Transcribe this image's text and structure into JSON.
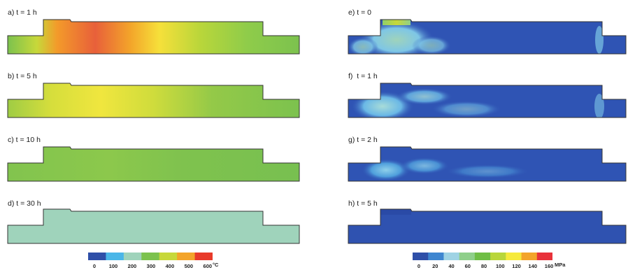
{
  "temperature_panels": [
    {
      "label": "a) t = 1 h"
    },
    {
      "label": "b) t = 5 h"
    },
    {
      "label": "c) t = 10 h"
    },
    {
      "label": "d) t = 30 h"
    }
  ],
  "stress_panels": [
    {
      "label": "e) t = 0"
    },
    {
      "label": "f)  t = 1 h"
    },
    {
      "label": "g) t = 2 h"
    },
    {
      "label": "h) t = 5 h"
    }
  ],
  "temperature_legend": {
    "ticks": [
      "0",
      "100",
      "200",
      "300",
      "400",
      "500",
      "600"
    ],
    "unit": "°C",
    "colors": [
      "#2f4fa8",
      "#4ab6e8",
      "#9fd3bb",
      "#7cc24e",
      "#c7d83a",
      "#f3a42a",
      "#e83a2a"
    ]
  },
  "stress_legend": {
    "ticks": [
      "0",
      "20",
      "40",
      "60",
      "80",
      "100",
      "120",
      "140",
      "160"
    ],
    "unit": "MPa",
    "colors": [
      "#2f4fa8",
      "#3f86d0",
      "#9fd3e4",
      "#8fcf8a",
      "#6fbe45",
      "#b9d63a",
      "#f6ea3c",
      "#f3a42a",
      "#e8323a"
    ]
  }
}
